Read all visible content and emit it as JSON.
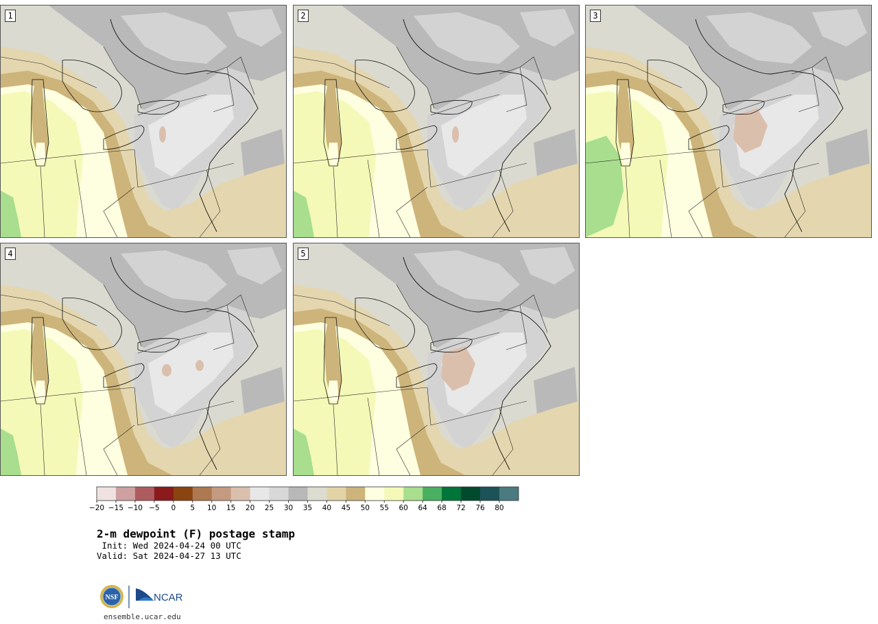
{
  "panels": [
    {
      "label": "1",
      "variant": 1
    },
    {
      "label": "2",
      "variant": 2
    },
    {
      "label": "3",
      "variant": 3
    },
    {
      "label": "4",
      "variant": 4
    },
    {
      "label": "5",
      "variant": 5
    }
  ],
  "colorbar": {
    "ticks": [
      "−20",
      "−15",
      "−10",
      "−5",
      "0",
      "5",
      "10",
      "15",
      "20",
      "25",
      "30",
      "35",
      "40",
      "45",
      "50",
      "55",
      "60",
      "64",
      "68",
      "72",
      "76",
      "80"
    ],
    "colors": [
      "#f1e2e2",
      "#cfa0a2",
      "#ae5c60",
      "#8b1a1c",
      "#8a4410",
      "#ae7850",
      "#c49a80",
      "#dbbfad",
      "#e8e8e8",
      "#d8d8d8",
      "#b8b8b8",
      "#dcdcd0",
      "#e3d4a8",
      "#cdb47a",
      "#fefee0",
      "#f4f9b8",
      "#a8de8e",
      "#48b060",
      "#00753a",
      "#004a2e",
      "#1c5258",
      "#4b7a80"
    ]
  },
  "map_colors": {
    "ocean": "#dadad0",
    "gray_dark": "#b9b9b9",
    "gray_mid": "#d3d3d3",
    "gray_light": "#e8e8e8",
    "tan": "#e4d6ae",
    "brown": "#cdb47a",
    "yellow_pale": "#fefee0",
    "yellow": "#f4f9b8",
    "green": "#a8de8e",
    "pink": "#dbbfad"
  },
  "title": "2-m dewpoint (F) postage stamp",
  "init": " Init: Wed 2024-04-24 00 UTC",
  "valid": "Valid: Sat 2024-04-27 13 UTC",
  "logo": {
    "left": "NSF",
    "right": "NCAR"
  },
  "site": "ensemble.ucar.edu"
}
